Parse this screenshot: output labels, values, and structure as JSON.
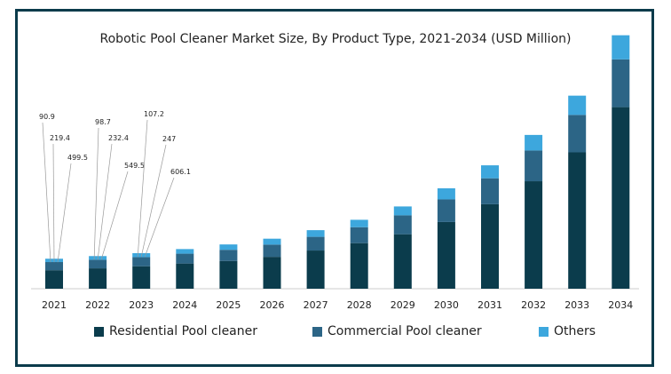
{
  "chart_data": {
    "type": "bar",
    "stacked": true,
    "title": "Robotic Pool Cleaner Market Size, By Product Type, 2021-2034 (USD Million)",
    "xlabel": "",
    "ylabel": "",
    "categories": [
      "2021",
      "2022",
      "2023",
      "2024",
      "2025",
      "2026",
      "2027",
      "2028",
      "2029",
      "2030",
      "2031",
      "2032",
      "2033",
      "2034"
    ],
    "series": [
      {
        "name": "Residential Pool cleaner",
        "color": "#0b3c4c",
        "values": [
          499.5,
          549.5,
          606.1,
          680,
          750,
          860,
          1030,
          1230,
          1470,
          1800,
          2280,
          2900,
          3680,
          4900
        ]
      },
      {
        "name": "Commercial Pool cleaner",
        "color": "#2c6586",
        "values": [
          219.4,
          232.4,
          247,
          265,
          300,
          330,
          370,
          430,
          510,
          610,
          700,
          830,
          1010,
          1290
        ]
      },
      {
        "name": "Others",
        "color": "#3da7dd",
        "values": [
          90.9,
          98.7,
          107.2,
          125,
          145,
          160,
          180,
          200,
          240,
          300,
          350,
          420,
          520,
          650
        ]
      }
    ],
    "data_labels": [
      {
        "category": "2021",
        "texts": [
          "90.9",
          "219.4",
          "499.5"
        ]
      },
      {
        "category": "2022",
        "texts": [
          "98.7",
          "232.4",
          "549.5"
        ]
      },
      {
        "category": "2023",
        "texts": [
          "107.2",
          "247",
          "606.1"
        ]
      }
    ],
    "ylim": [
      0,
      7000
    ],
    "grid": false,
    "legend_position": "bottom"
  }
}
